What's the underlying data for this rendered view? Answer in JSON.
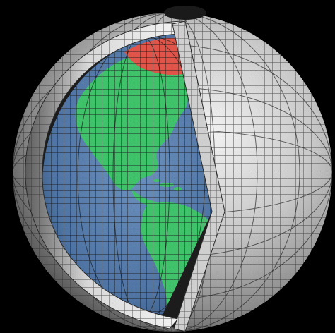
{
  "scene": {
    "subject": "cutaway-globe-grid",
    "colors": {
      "background": "#000000",
      "ocean": "#5a7fae",
      "land": "#3fc26a",
      "ice": "#e0544a",
      "shell_light": "#e6e6e6",
      "shell_dark": "#6a6a6a",
      "grid_line": "#111111"
    }
  }
}
